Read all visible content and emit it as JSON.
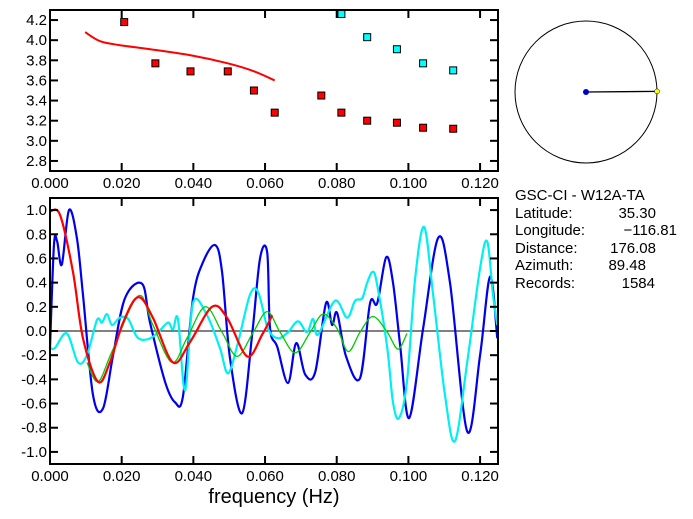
{
  "chart_data": [
    {
      "type": "scatter",
      "title": "",
      "xlabel": "",
      "ylabel": "",
      "xlim": [
        0,
        0.125
      ],
      "ylim": [
        2.7,
        4.3
      ],
      "xticks": [
        "0.000",
        "0.020",
        "0.040",
        "0.060",
        "0.080",
        "0.100",
        "0.120"
      ],
      "xtick_values": [
        0,
        0.02,
        0.04,
        0.06,
        0.08,
        0.1,
        0.12
      ],
      "yticks": [
        "2.8",
        "3.0",
        "3.2",
        "3.4",
        "3.6",
        "3.8",
        "4.0",
        "4.2"
      ],
      "ytick_values": [
        2.8,
        3.0,
        3.2,
        3.4,
        3.6,
        3.8,
        4.0,
        4.2
      ],
      "series": [
        {
          "name": "red-points",
          "color": "#ff0000",
          "kind": "points",
          "points": [
            [
              0.0207,
              4.18
            ],
            [
              0.0294,
              3.77
            ],
            [
              0.0392,
              3.69
            ],
            [
              0.0496,
              3.69
            ],
            [
              0.0569,
              3.5
            ],
            [
              0.0627,
              3.28
            ],
            [
              0.0757,
              3.45
            ],
            [
              0.0813,
              3.28
            ],
            [
              0.0885,
              3.2
            ],
            [
              0.0968,
              3.18
            ],
            [
              0.1041,
              3.13
            ],
            [
              0.1125,
              3.12
            ]
          ]
        },
        {
          "name": "cyan-points",
          "color": "#00ffff",
          "kind": "points",
          "points": [
            [
              0.0813,
              4.26
            ],
            [
              0.0885,
              4.03
            ],
            [
              0.0968,
              3.91
            ],
            [
              0.1041,
              3.77
            ],
            [
              0.1125,
              3.7
            ]
          ]
        },
        {
          "name": "red-curve",
          "color": "#ff0000",
          "kind": "line",
          "points": [
            [
              0.0098,
              4.08
            ],
            [
              0.014,
              3.99
            ],
            [
              0.0196,
              3.95
            ],
            [
              0.028,
              3.91
            ],
            [
              0.0392,
              3.85
            ],
            [
              0.0496,
              3.77
            ],
            [
              0.057,
              3.69
            ],
            [
              0.0627,
              3.6
            ]
          ]
        }
      ]
    },
    {
      "type": "line",
      "title": "",
      "xlabel": "frequency (Hz)",
      "ylabel": "",
      "xlim": [
        0,
        0.125
      ],
      "ylim": [
        -1.1,
        1.1
      ],
      "xticks": [
        "0.000",
        "0.020",
        "0.040",
        "0.060",
        "0.080",
        "0.100",
        "0.120"
      ],
      "xtick_values": [
        0,
        0.02,
        0.04,
        0.06,
        0.08,
        0.1,
        0.12
      ],
      "yticks": [
        "1.0",
        "0.8",
        "0.6",
        "0.4",
        "0.2",
        "0.0",
        "-0.2",
        "-0.4",
        "-0.6",
        "-0.8",
        "-1.0"
      ],
      "ytick_values": [
        1.0,
        0.8,
        0.6,
        0.4,
        0.2,
        0.0,
        -0.2,
        -0.4,
        -0.6,
        -0.8,
        -1.0
      ],
      "series": [
        {
          "name": "blue",
          "color": "#0000ee",
          "width": 2.2,
          "points": [
            [
              0,
              -0.14
            ],
            [
              0.0011,
              0.71
            ],
            [
              0.002,
              0.74
            ],
            [
              0.0033,
              0.55
            ],
            [
              0.0053,
              1.0
            ],
            [
              0.0075,
              0.77
            ],
            [
              0.0092,
              0.3
            ],
            [
              0.012,
              -0.53
            ],
            [
              0.0148,
              -0.64
            ],
            [
              0.0176,
              -0.2
            ],
            [
              0.0209,
              0.27
            ],
            [
              0.0257,
              0.39
            ],
            [
              0.0279,
              0.07
            ],
            [
              0.0321,
              -0.42
            ],
            [
              0.0349,
              -0.59
            ],
            [
              0.0371,
              -0.54
            ],
            [
              0.0399,
              0.27
            ],
            [
              0.0427,
              0.57
            ],
            [
              0.0461,
              0.71
            ],
            [
              0.048,
              0.49
            ],
            [
              0.0502,
              -0.22
            ],
            [
              0.0536,
              -0.68
            ],
            [
              0.0564,
              -0.03
            ],
            [
              0.0586,
              0.6
            ],
            [
              0.0606,
              0.65
            ],
            [
              0.0614,
              0.02
            ],
            [
              0.0634,
              -0.13
            ],
            [
              0.0664,
              -0.43
            ],
            [
              0.0687,
              -0.1
            ],
            [
              0.0712,
              -0.36
            ],
            [
              0.074,
              -0.34
            ],
            [
              0.077,
              0.23
            ],
            [
              0.0787,
              0.05
            ],
            [
              0.0801,
              0.15
            ],
            [
              0.0826,
              -0.21
            ],
            [
              0.0865,
              -0.39
            ],
            [
              0.0893,
              0.23
            ],
            [
              0.0913,
              0.23
            ],
            [
              0.0938,
              0.61
            ],
            [
              0.0957,
              0.4
            ],
            [
              0.0977,
              -0.12
            ],
            [
              0.1002,
              -0.72
            ],
            [
              0.1041,
              0.02
            ],
            [
              0.1083,
              0.77
            ],
            [
              0.1116,
              0.4
            ],
            [
              0.1164,
              -0.83
            ],
            [
              0.12,
              -0.2
            ],
            [
              0.1228,
              0.45
            ],
            [
              0.1248,
              -0.06
            ]
          ]
        },
        {
          "name": "cyan",
          "color": "#00f0f0",
          "width": 2.2,
          "points": [
            [
              0,
              -0.14
            ],
            [
              0.0014,
              -0.14
            ],
            [
              0.0047,
              -0.02
            ],
            [
              0.0078,
              -0.26
            ],
            [
              0.0103,
              -0.2
            ],
            [
              0.0131,
              0.09
            ],
            [
              0.0145,
              0.07
            ],
            [
              0.0159,
              0.14
            ],
            [
              0.0173,
              0.05
            ],
            [
              0.0195,
              0.11
            ],
            [
              0.0218,
              0.1
            ],
            [
              0.0243,
              -0.05
            ],
            [
              0.0271,
              -0.07
            ],
            [
              0.0299,
              -0.02
            ],
            [
              0.0329,
              0.07
            ],
            [
              0.0343,
              0.01
            ],
            [
              0.0357,
              0.1
            ],
            [
              0.0377,
              -0.49
            ],
            [
              0.0399,
              0.23
            ],
            [
              0.0438,
              0.13
            ],
            [
              0.0474,
              -0.14
            ],
            [
              0.0497,
              -0.35
            ],
            [
              0.0525,
              -0.09
            ],
            [
              0.0558,
              0.3
            ],
            [
              0.0581,
              0.32
            ],
            [
              0.0608,
              0.02
            ],
            [
              0.0636,
              -0.06
            ],
            [
              0.0664,
              -0.01
            ],
            [
              0.0692,
              0.08
            ],
            [
              0.0717,
              -0.01
            ],
            [
              0.0734,
              0.1
            ],
            [
              0.0748,
              -0.03
            ],
            [
              0.0795,
              0.25
            ],
            [
              0.0829,
              0.11
            ],
            [
              0.0851,
              0.25
            ],
            [
              0.0871,
              0.27
            ],
            [
              0.0885,
              0.4
            ],
            [
              0.0901,
              0.49
            ],
            [
              0.0913,
              0.38
            ],
            [
              0.0941,
              -0.14
            ],
            [
              0.0957,
              -0.59
            ],
            [
              0.0974,
              -0.72
            ],
            [
              0.0996,
              -0.42
            ],
            [
              0.1019,
              0.44
            ],
            [
              0.1044,
              0.86
            ],
            [
              0.1069,
              0.3
            ],
            [
              0.1102,
              -0.53
            ],
            [
              0.113,
              -0.91
            ],
            [
              0.1164,
              -0.26
            ],
            [
              0.12,
              0.52
            ],
            [
              0.122,
              0.74
            ],
            [
              0.1236,
              0.3
            ],
            [
              0.1248,
              0.05
            ]
          ]
        },
        {
          "name": "green",
          "color": "#00cc00",
          "width": 1.3,
          "points": [
            [
              0.0103,
              -0.26
            ],
            [
              0.0134,
              -0.42
            ],
            [
              0.0173,
              -0.17
            ],
            [
              0.0246,
              0.29
            ],
            [
              0.0287,
              0.05
            ],
            [
              0.034,
              -0.26
            ],
            [
              0.0382,
              -0.06
            ],
            [
              0.0433,
              0.2
            ],
            [
              0.048,
              -0.01
            ],
            [
              0.0522,
              -0.21
            ],
            [
              0.0567,
              -0.01
            ],
            [
              0.0606,
              0.16
            ],
            [
              0.0642,
              -0.01
            ],
            [
              0.0684,
              -0.18
            ],
            [
              0.0726,
              -0.01
            ],
            [
              0.0762,
              0.14
            ],
            [
              0.0801,
              0.02
            ],
            [
              0.0832,
              -0.17
            ],
            [
              0.0865,
              -0.01
            ],
            [
              0.0901,
              0.12
            ],
            [
              0.0941,
              -0.01
            ],
            [
              0.0971,
              -0.15
            ],
            [
              0.0996,
              -0.02
            ]
          ]
        },
        {
          "name": "red",
          "color": "#ff0000",
          "width": 2.2,
          "points": [
            [
              0,
              0.99
            ],
            [
              0.0028,
              0.96
            ],
            [
              0.0064,
              0.49
            ],
            [
              0.0092,
              -0.06
            ],
            [
              0.0134,
              -0.42
            ],
            [
              0.0167,
              -0.26
            ],
            [
              0.0204,
              0.07
            ],
            [
              0.0246,
              0.28
            ],
            [
              0.0287,
              0.11
            ],
            [
              0.0343,
              -0.26
            ],
            [
              0.0391,
              -0.09
            ],
            [
              0.0452,
              0.2
            ],
            [
              0.0494,
              0.11
            ],
            [
              0.055,
              -0.21
            ],
            [
              0.0592,
              -0.03
            ],
            [
              0.062,
              0.13
            ]
          ]
        }
      ]
    }
  ],
  "azimuth_dial": {
    "azimuth_deg": 89.48,
    "line_color": "#000000",
    "center_color": "#0000cc",
    "tip_color": "#ffff00"
  },
  "station": {
    "header": "GSC-CI  -  W12A-TA",
    "rows": [
      {
        "label": "Latitude:",
        "value": "35.30"
      },
      {
        "label": "Longitude:",
        "value": "−116.81"
      },
      {
        "label": "Distance:",
        "value": "176.08"
      },
      {
        "label": "Azimuth:",
        "value": "89.48"
      },
      {
        "label": "Records:",
        "value": "1584"
      }
    ]
  }
}
